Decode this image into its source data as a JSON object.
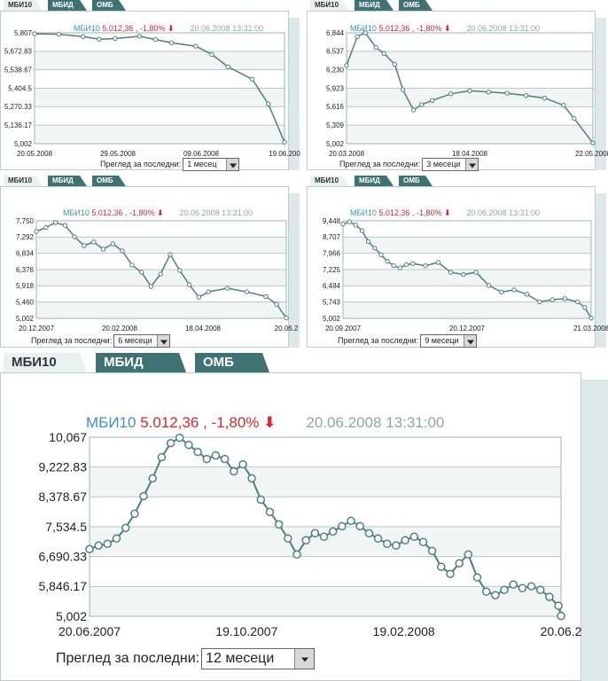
{
  "header": {
    "index": "МБИ10",
    "value": "5.012,36 , -1,80%",
    "timestamp": "20.06.2008 13:31:00"
  },
  "tabs": [
    "МБИ10",
    "МБИД",
    "ОМБ"
  ],
  "period_label": "Преглед за последни:",
  "colors": {
    "line": "#4f7f7f",
    "marker_fill": "#ffffff",
    "grid": "#b7c9c9",
    "tab": "#3f7373",
    "index": "#3a91c9",
    "value": "#d8262d",
    "time": "#8aa7a7"
  },
  "chart_data": [
    {
      "type": "line",
      "period": "1 месец",
      "y_ticks": [
        "5,807",
        "5,672.83",
        "5,538.67",
        "5,404.5",
        "5,270.33",
        "5,136.17",
        "5,002"
      ],
      "x_ticks": [
        "20.05.2008",
        "29.05.2008",
        "09.06.2008",
        "19.06.200"
      ],
      "ylim": [
        5002,
        5807
      ],
      "xlim": [
        "2008-05-20",
        "2008-06-20"
      ],
      "series": [
        {
          "values": [
            [
              "2008-05-20",
              5800
            ],
            [
              "2008-05-23",
              5797
            ],
            [
              "2008-05-26",
              5780
            ],
            [
              "2008-05-28",
              5760
            ],
            [
              "2008-05-30",
              5765
            ],
            [
              "2008-06-02",
              5782
            ],
            [
              "2008-06-04",
              5758
            ],
            [
              "2008-06-06",
              5735
            ],
            [
              "2008-06-09",
              5710
            ],
            [
              "2008-06-11",
              5650
            ],
            [
              "2008-06-13",
              5560
            ],
            [
              "2008-06-16",
              5470
            ],
            [
              "2008-06-18",
              5290
            ],
            [
              "2008-06-20",
              5012
            ]
          ]
        }
      ]
    },
    {
      "type": "line",
      "period": "3 месеци",
      "y_ticks": [
        "6,844",
        "6,537",
        "6,230",
        "5,923",
        "5,616",
        "5,309",
        "5,002"
      ],
      "x_ticks": [
        "20.03.2008",
        "18.04.2008",
        "22.05.2008"
      ],
      "ylim": [
        5002,
        6844
      ],
      "xlim": [
        "2008-03-20",
        "2008-06-20"
      ],
      "series": [
        {
          "values": [
            [
              "2008-03-20",
              6300
            ],
            [
              "2008-03-24",
              6780
            ],
            [
              "2008-03-27",
              6844
            ],
            [
              "2008-03-31",
              6600
            ],
            [
              "2008-04-03",
              6500
            ],
            [
              "2008-04-07",
              6320
            ],
            [
              "2008-04-10",
              5900
            ],
            [
              "2008-04-14",
              5560
            ],
            [
              "2008-04-17",
              5650
            ],
            [
              "2008-04-21",
              5720
            ],
            [
              "2008-04-28",
              5830
            ],
            [
              "2008-05-05",
              5880
            ],
            [
              "2008-05-12",
              5860
            ],
            [
              "2008-05-19",
              5840
            ],
            [
              "2008-05-26",
              5800
            ],
            [
              "2008-06-02",
              5760
            ],
            [
              "2008-06-09",
              5640
            ],
            [
              "2008-06-13",
              5420
            ],
            [
              "2008-06-20",
              5012
            ]
          ]
        }
      ]
    },
    {
      "type": "line",
      "period": "6 месеци",
      "y_ticks": [
        "7,750",
        "7,292",
        "6,834",
        "6,376",
        "5,918",
        "5,460",
        "5,002"
      ],
      "x_ticks": [
        "20.12.2007",
        "20.02.2008",
        "18.04.2008",
        "20.06.2"
      ],
      "ylim": [
        5002,
        7750
      ],
      "xlim": [
        "2007-12-20",
        "2008-06-20"
      ],
      "series": [
        {
          "values": [
            [
              "2007-12-20",
              7450
            ],
            [
              "2007-12-27",
              7560
            ],
            [
              "2008-01-03",
              7700
            ],
            [
              "2008-01-10",
              7620
            ],
            [
              "2008-01-17",
              7300
            ],
            [
              "2008-01-24",
              7050
            ],
            [
              "2008-01-31",
              7150
            ],
            [
              "2008-02-07",
              6950
            ],
            [
              "2008-02-14",
              7100
            ],
            [
              "2008-02-21",
              6900
            ],
            [
              "2008-02-28",
              6500
            ],
            [
              "2008-03-06",
              6300
            ],
            [
              "2008-03-13",
              5900
            ],
            [
              "2008-03-20",
              6250
            ],
            [
              "2008-03-27",
              6800
            ],
            [
              "2008-04-03",
              6350
            ],
            [
              "2008-04-10",
              5950
            ],
            [
              "2008-04-17",
              5600
            ],
            [
              "2008-04-24",
              5750
            ],
            [
              "2008-05-08",
              5850
            ],
            [
              "2008-05-22",
              5750
            ],
            [
              "2008-06-05",
              5620
            ],
            [
              "2008-06-13",
              5400
            ],
            [
              "2008-06-20",
              5012
            ]
          ]
        }
      ]
    },
    {
      "type": "line",
      "period": "9 месеци",
      "y_ticks": [
        "9,448",
        "8,707",
        "7,966",
        "7,225",
        "6,484",
        "5,743",
        "5,002"
      ],
      "x_ticks": [
        "20.09.2007",
        "20.12.2007",
        "21.03.2008"
      ],
      "ylim": [
        5002,
        9448
      ],
      "xlim": [
        "2007-09-20",
        "2008-06-20"
      ],
      "series": [
        {
          "values": [
            [
              "2007-09-20",
              9300
            ],
            [
              "2007-09-27",
              9400
            ],
            [
              "2007-10-04",
              9250
            ],
            [
              "2007-10-11",
              9000
            ],
            [
              "2007-10-18",
              8500
            ],
            [
              "2007-10-25",
              8200
            ],
            [
              "2007-11-01",
              7900
            ],
            [
              "2007-11-08",
              7600
            ],
            [
              "2007-11-15",
              7400
            ],
            [
              "2007-11-22",
              7300
            ],
            [
              "2007-11-29",
              7450
            ],
            [
              "2007-12-06",
              7500
            ],
            [
              "2007-12-20",
              7400
            ],
            [
              "2008-01-03",
              7550
            ],
            [
              "2008-01-17",
              7100
            ],
            [
              "2008-01-31",
              7000
            ],
            [
              "2008-02-14",
              7100
            ],
            [
              "2008-02-28",
              6500
            ],
            [
              "2008-03-13",
              6200
            ],
            [
              "2008-03-27",
              6300
            ],
            [
              "2008-04-10",
              6100
            ],
            [
              "2008-04-24",
              5750
            ],
            [
              "2008-05-08",
              5850
            ],
            [
              "2008-05-22",
              5900
            ],
            [
              "2008-06-05",
              5750
            ],
            [
              "2008-06-13",
              5500
            ],
            [
              "2008-06-20",
              5012
            ]
          ]
        }
      ]
    },
    {
      "type": "line",
      "period": "12 месеци",
      "y_ticks": [
        "10,067",
        "9,222.83",
        "8,378.67",
        "7,534.5",
        "6,690.33",
        "5,846.17",
        "5,002"
      ],
      "x_ticks": [
        "20.06.2007",
        "19.10.2007",
        "19.02.2008",
        "20.06.2"
      ],
      "ylim": [
        5002,
        10067
      ],
      "xlim": [
        "2007-06-20",
        "2008-06-20"
      ],
      "series": [
        {
          "values": [
            [
              "2007-06-20",
              6900
            ],
            [
              "2007-06-27",
              7000
            ],
            [
              "2007-07-04",
              7050
            ],
            [
              "2007-07-11",
              7200
            ],
            [
              "2007-07-18",
              7500
            ],
            [
              "2007-07-25",
              7900
            ],
            [
              "2007-08-01",
              8400
            ],
            [
              "2007-08-08",
              8900
            ],
            [
              "2007-08-15",
              9500
            ],
            [
              "2007-08-22",
              9900
            ],
            [
              "2007-08-29",
              10050
            ],
            [
              "2007-09-05",
              9850
            ],
            [
              "2007-09-12",
              9650
            ],
            [
              "2007-09-19",
              9450
            ],
            [
              "2007-09-26",
              9550
            ],
            [
              "2007-10-03",
              9450
            ],
            [
              "2007-10-10",
              9100
            ],
            [
              "2007-10-17",
              9300
            ],
            [
              "2007-10-24",
              8900
            ],
            [
              "2007-10-31",
              8300
            ],
            [
              "2007-11-07",
              7950
            ],
            [
              "2007-11-14",
              7600
            ],
            [
              "2007-11-21",
              7200
            ],
            [
              "2007-11-28",
              6750
            ],
            [
              "2007-12-05",
              7150
            ],
            [
              "2007-12-12",
              7350
            ],
            [
              "2007-12-19",
              7250
            ],
            [
              "2007-12-26",
              7400
            ],
            [
              "2008-01-02",
              7550
            ],
            [
              "2008-01-09",
              7700
            ],
            [
              "2008-01-16",
              7550
            ],
            [
              "2008-01-23",
              7350
            ],
            [
              "2008-01-30",
              7200
            ],
            [
              "2008-02-06",
              7050
            ],
            [
              "2008-02-13",
              7000
            ],
            [
              "2008-02-20",
              7150
            ],
            [
              "2008-02-27",
              7250
            ],
            [
              "2008-03-05",
              7100
            ],
            [
              "2008-03-12",
              6850
            ],
            [
              "2008-03-19",
              6400
            ],
            [
              "2008-03-26",
              6200
            ],
            [
              "2008-04-02",
              6500
            ],
            [
              "2008-04-09",
              6750
            ],
            [
              "2008-04-16",
              6100
            ],
            [
              "2008-04-23",
              5700
            ],
            [
              "2008-04-30",
              5600
            ],
            [
              "2008-05-07",
              5750
            ],
            [
              "2008-05-14",
              5900
            ],
            [
              "2008-05-21",
              5800
            ],
            [
              "2008-05-28",
              5850
            ],
            [
              "2008-06-04",
              5750
            ],
            [
              "2008-06-11",
              5550
            ],
            [
              "2008-06-18",
              5300
            ],
            [
              "2008-06-20",
              5012
            ]
          ]
        }
      ]
    }
  ]
}
